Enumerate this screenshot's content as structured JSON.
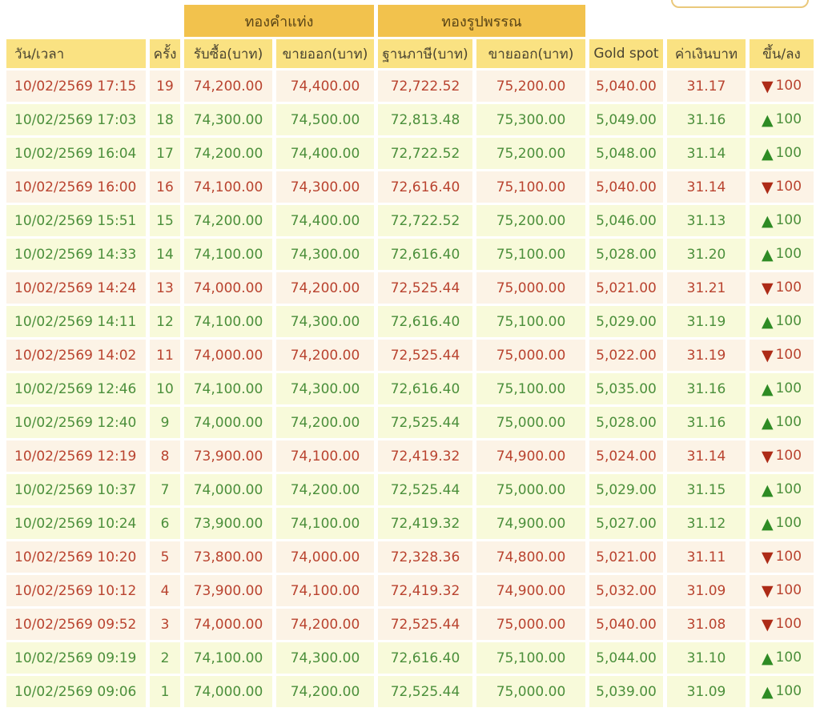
{
  "colors": {
    "group_header_bg": "#f2c24d",
    "column_header_bg": "#fae282",
    "up_text": "#4b8f3b",
    "down_text": "#b9432f",
    "up_row_bg": "#f8fada",
    "down_row_bg": "#fcf3e6",
    "cutoff_button_border": "#eac87b"
  },
  "icons": {
    "up_arrow": "▲",
    "down_arrow": "▼"
  },
  "table": {
    "group_headers": [
      {
        "label": "ทองคำแท่ง"
      },
      {
        "label": "ทองรูปพรรณ"
      }
    ],
    "columns": [
      "วัน/เวลา",
      "ครั้ง",
      "รับซื้อ(บาท)",
      "ขายออก(บาท)",
      "ฐานภาษี(บาท)",
      "ขายออก(บาท)",
      "Gold spot",
      "ค่าเงินบาท",
      "ขึ้น/ลง"
    ],
    "rows": [
      {
        "datetime": "10/02/2569 17:15",
        "round": "19",
        "bar_buy": "74,200.00",
        "bar_sell": "74,400.00",
        "orn_tax": "72,722.52",
        "orn_sell": "75,200.00",
        "gold_spot": "5,040.00",
        "baht": "31.17",
        "change": "100",
        "direction": "down"
      },
      {
        "datetime": "10/02/2569 17:03",
        "round": "18",
        "bar_buy": "74,300.00",
        "bar_sell": "74,500.00",
        "orn_tax": "72,813.48",
        "orn_sell": "75,300.00",
        "gold_spot": "5,049.00",
        "baht": "31.16",
        "change": "100",
        "direction": "up"
      },
      {
        "datetime": "10/02/2569 16:04",
        "round": "17",
        "bar_buy": "74,200.00",
        "bar_sell": "74,400.00",
        "orn_tax": "72,722.52",
        "orn_sell": "75,200.00",
        "gold_spot": "5,048.00",
        "baht": "31.14",
        "change": "100",
        "direction": "up"
      },
      {
        "datetime": "10/02/2569 16:00",
        "round": "16",
        "bar_buy": "74,100.00",
        "bar_sell": "74,300.00",
        "orn_tax": "72,616.40",
        "orn_sell": "75,100.00",
        "gold_spot": "5,040.00",
        "baht": "31.14",
        "change": "100",
        "direction": "down"
      },
      {
        "datetime": "10/02/2569 15:51",
        "round": "15",
        "bar_buy": "74,200.00",
        "bar_sell": "74,400.00",
        "orn_tax": "72,722.52",
        "orn_sell": "75,200.00",
        "gold_spot": "5,046.00",
        "baht": "31.13",
        "change": "100",
        "direction": "up"
      },
      {
        "datetime": "10/02/2569 14:33",
        "round": "14",
        "bar_buy": "74,100.00",
        "bar_sell": "74,300.00",
        "orn_tax": "72,616.40",
        "orn_sell": "75,100.00",
        "gold_spot": "5,028.00",
        "baht": "31.20",
        "change": "100",
        "direction": "up"
      },
      {
        "datetime": "10/02/2569 14:24",
        "round": "13",
        "bar_buy": "74,000.00",
        "bar_sell": "74,200.00",
        "orn_tax": "72,525.44",
        "orn_sell": "75,000.00",
        "gold_spot": "5,021.00",
        "baht": "31.21",
        "change": "100",
        "direction": "down"
      },
      {
        "datetime": "10/02/2569 14:11",
        "round": "12",
        "bar_buy": "74,100.00",
        "bar_sell": "74,300.00",
        "orn_tax": "72,616.40",
        "orn_sell": "75,100.00",
        "gold_spot": "5,029.00",
        "baht": "31.19",
        "change": "100",
        "direction": "up"
      },
      {
        "datetime": "10/02/2569 14:02",
        "round": "11",
        "bar_buy": "74,000.00",
        "bar_sell": "74,200.00",
        "orn_tax": "72,525.44",
        "orn_sell": "75,000.00",
        "gold_spot": "5,022.00",
        "baht": "31.19",
        "change": "100",
        "direction": "down"
      },
      {
        "datetime": "10/02/2569 12:46",
        "round": "10",
        "bar_buy": "74,100.00",
        "bar_sell": "74,300.00",
        "orn_tax": "72,616.40",
        "orn_sell": "75,100.00",
        "gold_spot": "5,035.00",
        "baht": "31.16",
        "change": "100",
        "direction": "up"
      },
      {
        "datetime": "10/02/2569 12:40",
        "round": "9",
        "bar_buy": "74,000.00",
        "bar_sell": "74,200.00",
        "orn_tax": "72,525.44",
        "orn_sell": "75,000.00",
        "gold_spot": "5,028.00",
        "baht": "31.16",
        "change": "100",
        "direction": "up"
      },
      {
        "datetime": "10/02/2569 12:19",
        "round": "8",
        "bar_buy": "73,900.00",
        "bar_sell": "74,100.00",
        "orn_tax": "72,419.32",
        "orn_sell": "74,900.00",
        "gold_spot": "5,024.00",
        "baht": "31.14",
        "change": "100",
        "direction": "down"
      },
      {
        "datetime": "10/02/2569 10:37",
        "round": "7",
        "bar_buy": "74,000.00",
        "bar_sell": "74,200.00",
        "orn_tax": "72,525.44",
        "orn_sell": "75,000.00",
        "gold_spot": "5,029.00",
        "baht": "31.15",
        "change": "100",
        "direction": "up"
      },
      {
        "datetime": "10/02/2569 10:24",
        "round": "6",
        "bar_buy": "73,900.00",
        "bar_sell": "74,100.00",
        "orn_tax": "72,419.32",
        "orn_sell": "74,900.00",
        "gold_spot": "5,027.00",
        "baht": "31.12",
        "change": "100",
        "direction": "up"
      },
      {
        "datetime": "10/02/2569 10:20",
        "round": "5",
        "bar_buy": "73,800.00",
        "bar_sell": "74,000.00",
        "orn_tax": "72,328.36",
        "orn_sell": "74,800.00",
        "gold_spot": "5,021.00",
        "baht": "31.11",
        "change": "100",
        "direction": "down"
      },
      {
        "datetime": "10/02/2569 10:12",
        "round": "4",
        "bar_buy": "73,900.00",
        "bar_sell": "74,100.00",
        "orn_tax": "72,419.32",
        "orn_sell": "74,900.00",
        "gold_spot": "5,032.00",
        "baht": "31.09",
        "change": "100",
        "direction": "down"
      },
      {
        "datetime": "10/02/2569 09:52",
        "round": "3",
        "bar_buy": "74,000.00",
        "bar_sell": "74,200.00",
        "orn_tax": "72,525.44",
        "orn_sell": "75,000.00",
        "gold_spot": "5,040.00",
        "baht": "31.08",
        "change": "100",
        "direction": "down"
      },
      {
        "datetime": "10/02/2569 09:19",
        "round": "2",
        "bar_buy": "74,100.00",
        "bar_sell": "74,300.00",
        "orn_tax": "72,616.40",
        "orn_sell": "75,100.00",
        "gold_spot": "5,044.00",
        "baht": "31.10",
        "change": "100",
        "direction": "up"
      },
      {
        "datetime": "10/02/2569 09:06",
        "round": "1",
        "bar_buy": "74,000.00",
        "bar_sell": "74,200.00",
        "orn_tax": "72,525.44",
        "orn_sell": "75,000.00",
        "gold_spot": "5,039.00",
        "baht": "31.09",
        "change": "100",
        "direction": "up"
      }
    ]
  }
}
